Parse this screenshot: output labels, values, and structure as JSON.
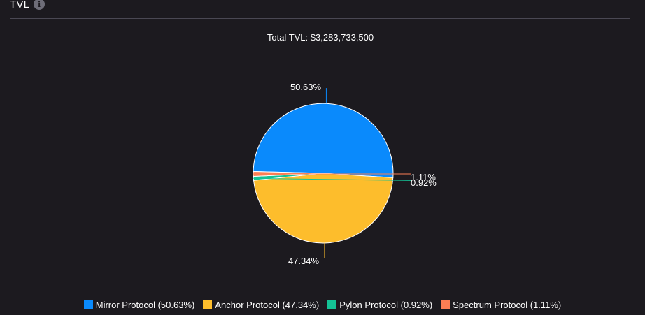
{
  "header": {
    "title": "TVL",
    "info_icon": "info-icon"
  },
  "chart_data": {
    "type": "pie",
    "title": "Total TVL: $3,283,733,500",
    "slices": [
      {
        "name": "Mirror Protocol",
        "value": 50.63,
        "label": "50.63%",
        "legend": "Mirror Protocol (50.63%)",
        "color": "#0a8afc"
      },
      {
        "name": "Anchor Protocol",
        "value": 47.34,
        "label": "47.34%",
        "legend": "Anchor Protocol (47.34%)",
        "color": "#fdbd2c"
      },
      {
        "name": "Pylon Protocol",
        "value": 0.92,
        "label": "0.92%",
        "legend": "Pylon Protocol (0.92%)",
        "color": "#14c295"
      },
      {
        "name": "Spectrum Protocol",
        "value": 1.11,
        "label": "1.11%",
        "legend": "Spectrum Protocol (1.11%)",
        "color": "#fc7e54"
      }
    ],
    "legend_position": "bottom"
  }
}
